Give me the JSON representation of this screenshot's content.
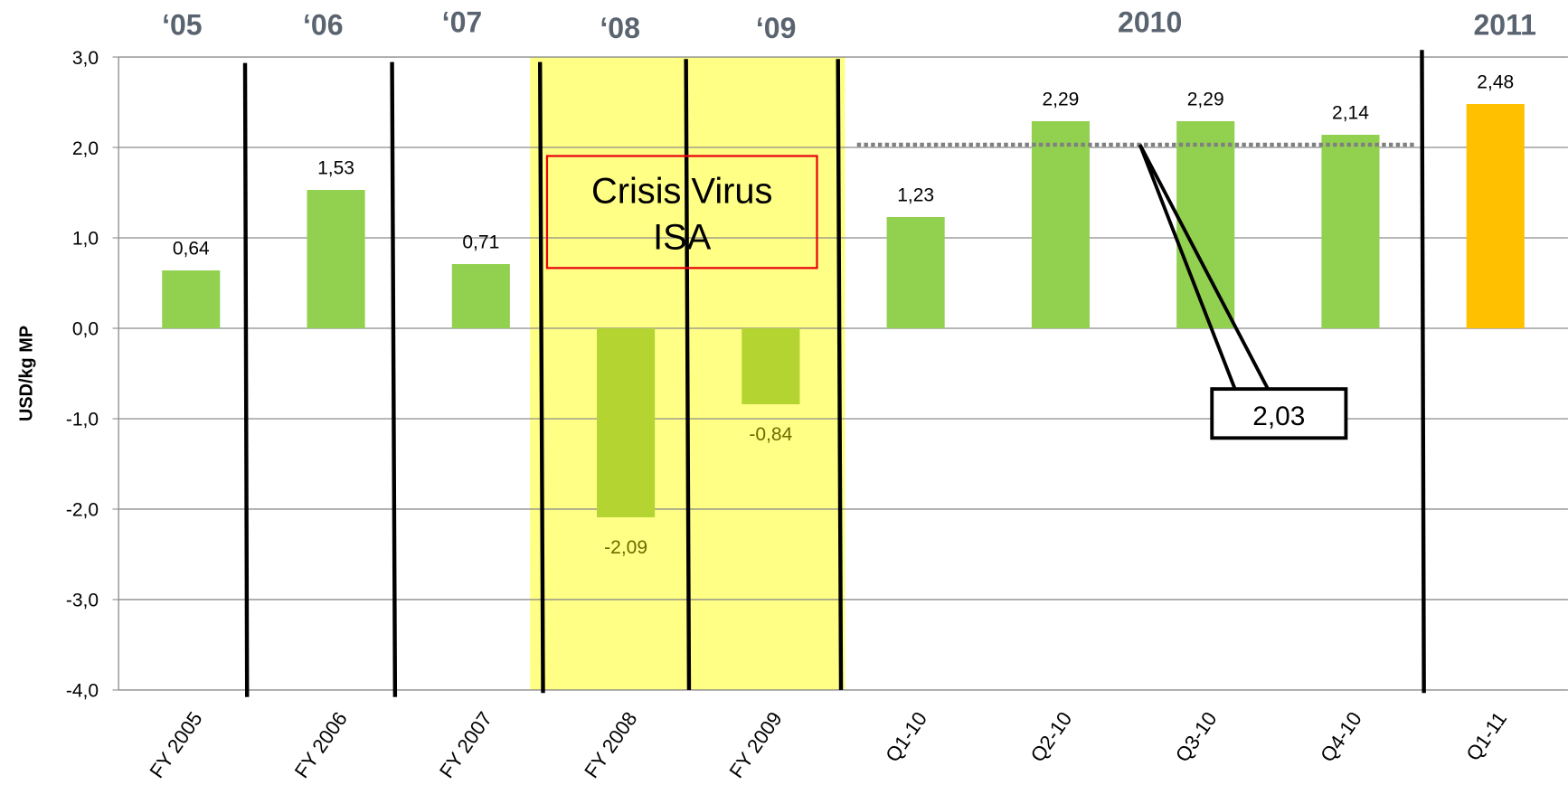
{
  "chart_data": {
    "type": "bar",
    "y_label": "USD/kg MP",
    "categories": [
      "FY 2005",
      "FY 2006",
      "FY 2007",
      "FY 2008",
      "FY 2009",
      "Q1-10",
      "Q2-10",
      "Q3-10",
      "Q4-10",
      "Q1-11"
    ],
    "values": [
      0.64,
      1.53,
      0.71,
      -2.09,
      -0.84,
      1.23,
      2.29,
      2.29,
      2.14,
      2.48
    ],
    "value_labels": [
      "0,64",
      "1,53",
      "0,71",
      "-2,09",
      "-0,84",
      "1,23",
      "2,29",
      "2,29",
      "2,14",
      "2,48"
    ],
    "colors": [
      "#92d050",
      "#92d050",
      "#92d050",
      "#b3d431",
      "#b3d431",
      "#92d050",
      "#92d050",
      "#92d050",
      "#92d050",
      "#ffc000"
    ],
    "ylim": [
      -4,
      3
    ],
    "yticks": [
      {
        "value": -4,
        "label": "-4,0"
      },
      {
        "value": -3,
        "label": "-3,0"
      },
      {
        "value": -2,
        "label": "-2,0"
      },
      {
        "value": -1,
        "label": "-1,0"
      },
      {
        "value": 0,
        "label": "0,0"
      },
      {
        "value": 1,
        "label": "1,0"
      },
      {
        "value": 2,
        "label": "2,0"
      },
      {
        "value": 3,
        "label": "3,0"
      }
    ],
    "grid": true,
    "period_labels": [
      "‘05",
      "‘06",
      "‘07",
      "‘08",
      "‘09",
      "2010",
      "2011"
    ],
    "annotation": [
      "Crisis Virus",
      "ISA"
    ],
    "reference_line": {
      "value": 2.03,
      "label": "2,03"
    }
  }
}
